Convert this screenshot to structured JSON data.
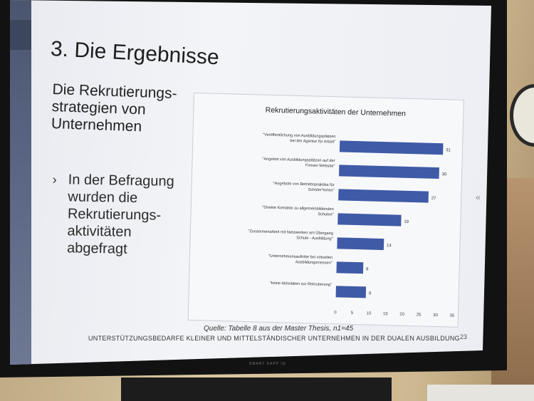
{
  "slide": {
    "title": "3. Die Ergebnisse",
    "subtitle": "Die Rekrutierungs-strategien von Unternehmen",
    "bullet": "In der Befragung wurden die Rekrutierungs-aktivitäten abgefragt",
    "bullet_mark": "›",
    "source": "Quelle: Tabelle 8 aus der Master Thesis, n1=45",
    "footer": "UNTERSTÜTZUNGSBEDARFE KLEINER UND MITTELSTÄNDISCHER UNTERNEHMEN IN DER DUALEN AUSBILDUNG",
    "page_number": "23",
    "collapse_icon": "«"
  },
  "chart_data": {
    "type": "bar",
    "orientation": "horizontal",
    "title": "Rekrutierungsaktivitäten der Unternehmen",
    "categories": [
      "\"Veröffentlichung von Ausbildungsplätzen bei der Agentur für Arbeit\"",
      "\"Angebot von Ausbildungsplätzen auf der Firmen-Website\"",
      "\"Angebote von Betriebspraktika für Schüler*innen\"",
      "\"Direkte Kontakte zu allgemeinbildenden Schulen\"",
      "\"Zusammenarbeit mit Netzwerken am Übergang Schule - Ausbildung\"",
      "\"Unternehmensauftritte bei virtuellen Ausbildungsmessen\"",
      "\"keine Aktivitäten zur Rekrutierung\""
    ],
    "values": [
      31,
      30,
      27,
      19,
      14,
      8,
      9
    ],
    "xlim": [
      0,
      35
    ],
    "xticks": [
      0,
      5,
      10,
      15,
      20,
      25,
      30,
      35
    ],
    "bar_color": "#3f5aa6"
  },
  "monitor_brand": "SMART KAPP IQ"
}
